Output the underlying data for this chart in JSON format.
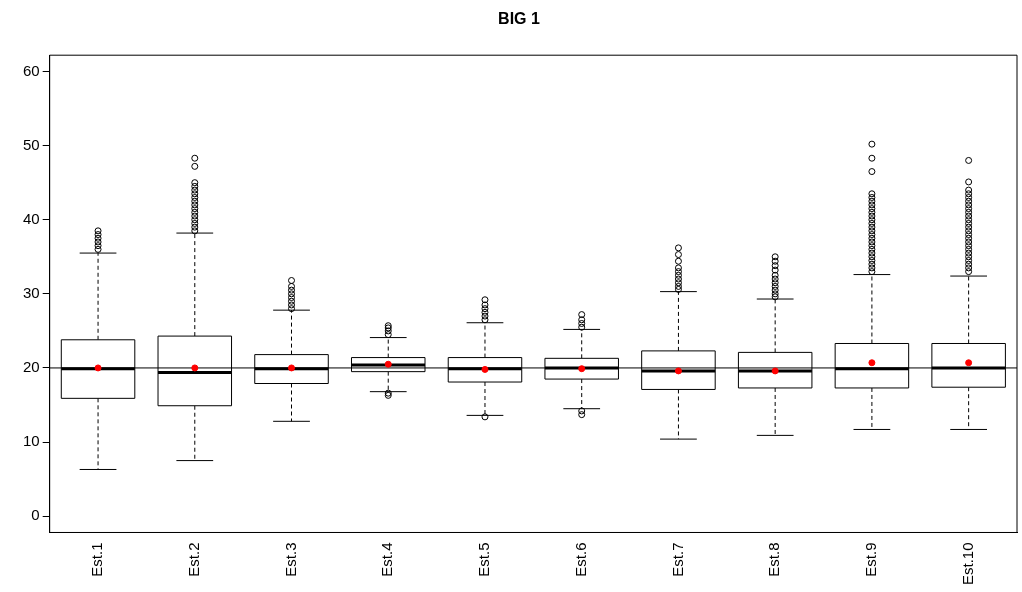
{
  "chart_data": {
    "type": "box",
    "title": "BIG 1",
    "categories": [
      "Est.1",
      "Est.2",
      "Est.3",
      "Est.4",
      "Est.5",
      "Est.6",
      "Est.7",
      "Est.8",
      "Est.9",
      "Est.10"
    ],
    "boxes": [
      {
        "low": 6.3,
        "q1": 15.9,
        "median": 19.9,
        "q3": 23.8,
        "high": 35.5,
        "outliers": [
          36.0,
          36.5,
          37.0,
          37.5,
          38.0,
          38.5
        ]
      },
      {
        "low": 7.5,
        "q1": 14.9,
        "median": 19.4,
        "q3": 24.3,
        "high": 38.2,
        "outliers": [
          38.5,
          39.0,
          39.5,
          40.0,
          40.5,
          41.0,
          41.5,
          42.0,
          42.5,
          43.0,
          43.5,
          44.0,
          44.5,
          45.0,
          47.2,
          48.3
        ]
      },
      {
        "low": 12.8,
        "q1": 17.9,
        "median": 19.9,
        "q3": 21.8,
        "high": 27.8,
        "outliers": [
          28.0,
          28.5,
          29.0,
          29.5,
          30.0,
          30.5,
          31.0,
          31.8
        ]
      },
      {
        "low": 16.8,
        "q1": 19.5,
        "median": 20.4,
        "q3": 21.4,
        "high": 24.1,
        "outliers": [
          16.3,
          16.6,
          24.5,
          25.0,
          25.4,
          25.7
        ]
      },
      {
        "low": 13.6,
        "q1": 18.1,
        "median": 19.9,
        "q3": 21.4,
        "high": 26.1,
        "outliers": [
          13.4,
          26.5,
          27.0,
          27.5,
          28.0,
          28.5,
          29.2
        ]
      },
      {
        "low": 14.5,
        "q1": 18.5,
        "median": 20.0,
        "q3": 21.3,
        "high": 25.2,
        "outliers": [
          13.7,
          14.2,
          25.5,
          26.0,
          26.5,
          27.2
        ]
      },
      {
        "low": 10.4,
        "q1": 17.1,
        "median": 19.6,
        "q3": 22.3,
        "high": 30.3,
        "outliers": [
          30.6,
          31.0,
          31.5,
          32.0,
          32.5,
          33.0,
          33.5,
          34.4,
          35.3,
          36.2
        ]
      },
      {
        "low": 10.9,
        "q1": 17.3,
        "median": 19.6,
        "q3": 22.1,
        "high": 29.3,
        "outliers": [
          29.6,
          30.0,
          30.5,
          31.0,
          31.5,
          32.0,
          32.5,
          33.2,
          33.8,
          34.4,
          35.0
        ]
      },
      {
        "low": 11.7,
        "q1": 17.3,
        "median": 19.9,
        "q3": 23.3,
        "high": 32.6,
        "outliers": [
          33.0,
          33.5,
          34.0,
          34.5,
          35.0,
          35.5,
          36.0,
          36.5,
          37.0,
          37.5,
          38.0,
          38.5,
          39.0,
          39.5,
          40.0,
          40.5,
          41.0,
          41.5,
          42.0,
          42.5,
          43.0,
          43.5,
          46.5,
          48.3,
          50.2
        ]
      },
      {
        "low": 11.7,
        "q1": 17.4,
        "median": 20.0,
        "q3": 23.3,
        "high": 32.4,
        "outliers": [
          33.0,
          33.5,
          34.0,
          34.5,
          35.0,
          35.5,
          36.0,
          36.5,
          37.0,
          37.5,
          38.0,
          38.5,
          39.0,
          39.5,
          40.0,
          40.5,
          41.0,
          41.5,
          42.0,
          42.5,
          43.0,
          43.5,
          44.0,
          45.1,
          48.0
        ]
      }
    ],
    "series": [
      {
        "type": "scatter",
        "color": "#ff0000",
        "x": [
          "Est.1",
          "Est.2",
          "Est.3",
          "Est.4",
          "Est.5",
          "Est.6",
          "Est.7",
          "Est.8",
          "Est.9",
          "Est.10"
        ],
        "values": [
          20.0,
          20.0,
          20.0,
          20.5,
          19.8,
          19.9,
          19.6,
          19.6,
          20.7,
          20.7
        ]
      }
    ],
    "ylim": [
      -2.2,
      62.2
    ],
    "yticks": [
      0,
      10,
      20,
      30,
      40,
      50,
      60
    ],
    "ref_lines": [
      {
        "axis": "y",
        "value": 20
      }
    ],
    "grid": false,
    "legend": false
  }
}
